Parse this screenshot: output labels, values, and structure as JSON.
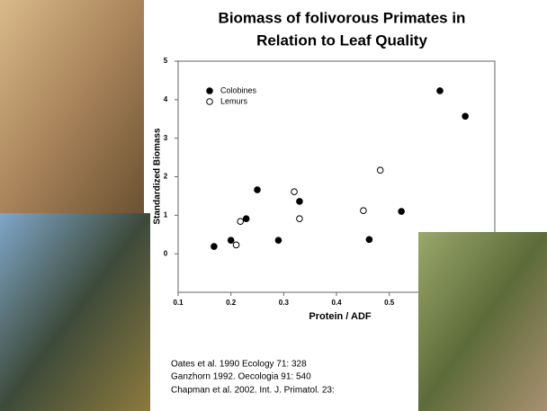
{
  "chart_data": {
    "type": "scatter",
    "title": [
      "Biomass of folivorous Primates in",
      "Relation to Leaf Quality"
    ],
    "x_label": "Protein / ADF",
    "y_label": "Standardized Biomass",
    "xlim": [
      0.1,
      0.7
    ],
    "xticks": [
      0.1,
      0.2,
      0.3,
      0.4,
      0.5
    ],
    "ylim": [
      -1,
      5
    ],
    "yticks": [
      0,
      1,
      2,
      3,
      4,
      5
    ],
    "legend": "top-left",
    "series": [
      {
        "name": "Colobines",
        "color": "#000000",
        "marker": "filled",
        "x": [
          0.168,
          0.2,
          0.229,
          0.25,
          0.29,
          0.33,
          0.462,
          0.523,
          0.596,
          0.644
        ],
        "values": [
          0.19,
          0.35,
          0.91,
          1.66,
          0.35,
          1.36,
          0.37,
          1.1,
          4.23,
          3.57
        ]
      },
      {
        "name": "Lemurs",
        "color": "#000000",
        "marker": "open",
        "x": [
          0.21,
          0.218,
          0.32,
          0.33,
          0.451,
          0.483
        ],
        "values": [
          0.23,
          0.84,
          1.61,
          0.91,
          1.12,
          2.17
        ]
      }
    ]
  },
  "references": [
    "Oates et al. 1990 Ecology 71: 328",
    "Ganzhorn 1992. Oecologia 91: 540",
    "Chapman et al. 2002. Int. J. Primatol. 23:"
  ]
}
